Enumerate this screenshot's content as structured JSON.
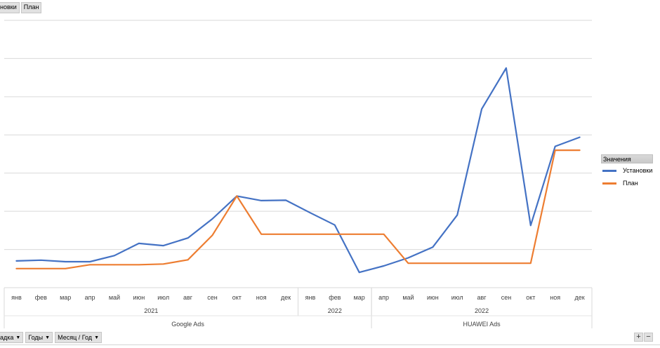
{
  "top_fields": [
    {
      "label": "новки"
    },
    {
      "label": "План"
    }
  ],
  "legend": {
    "title": "Значения",
    "items": [
      {
        "label": "Установки",
        "color": "#4472c4"
      },
      {
        "label": "План",
        "color": "#ed7d31"
      }
    ]
  },
  "bottom_fields": [
    {
      "label": "адка",
      "icon": "dropdown-arrow-icon"
    },
    {
      "label": "Годы",
      "icon": "dropdown-arrow-icon"
    },
    {
      "label": "Месяц / Год",
      "icon": "dropdown-arrow-icon"
    }
  ],
  "zoom": {
    "plus": "+",
    "minus": "−"
  },
  "chart_data": {
    "type": "line",
    "grid": true,
    "ylim": [
      0,
      7
    ],
    "y_gridlines": [
      1,
      2,
      3,
      4,
      5,
      6,
      7
    ],
    "months": [
      "янв",
      "фев",
      "мар",
      "апр",
      "май",
      "июн",
      "июл",
      "авг",
      "сен",
      "окт",
      "ноя",
      "дек",
      "янв",
      "фев",
      "мар",
      "апр",
      "май",
      "июн",
      "июл",
      "авг",
      "сен",
      "окт",
      "ноя",
      "дек"
    ],
    "year_groups": [
      {
        "label": "2021",
        "count": 12
      },
      {
        "label": "2022",
        "count": 3
      },
      {
        "label": "2022",
        "count": 9
      }
    ],
    "source_groups": [
      {
        "label": "Google Ads",
        "count": 15
      },
      {
        "label": "HUAWEI Ads",
        "count": 9
      }
    ],
    "series": [
      {
        "name": "Установки",
        "color": "#4472c4",
        "values": [
          0.7,
          0.72,
          0.68,
          0.68,
          0.84,
          1.16,
          1.1,
          1.3,
          1.8,
          2.4,
          2.28,
          2.29,
          1.96,
          1.64,
          0.4,
          0.57,
          0.78,
          1.06,
          1.9,
          4.68,
          5.75,
          1.63,
          3.7,
          3.94
        ]
      },
      {
        "name": "План",
        "color": "#ed7d31",
        "values": [
          0.5,
          0.5,
          0.5,
          0.6,
          0.6,
          0.6,
          0.62,
          0.73,
          1.37,
          2.4,
          1.4,
          1.4,
          1.4,
          1.4,
          1.4,
          1.4,
          0.64,
          0.64,
          0.64,
          0.64,
          0.64,
          0.64,
          3.6,
          3.6
        ]
      }
    ]
  }
}
